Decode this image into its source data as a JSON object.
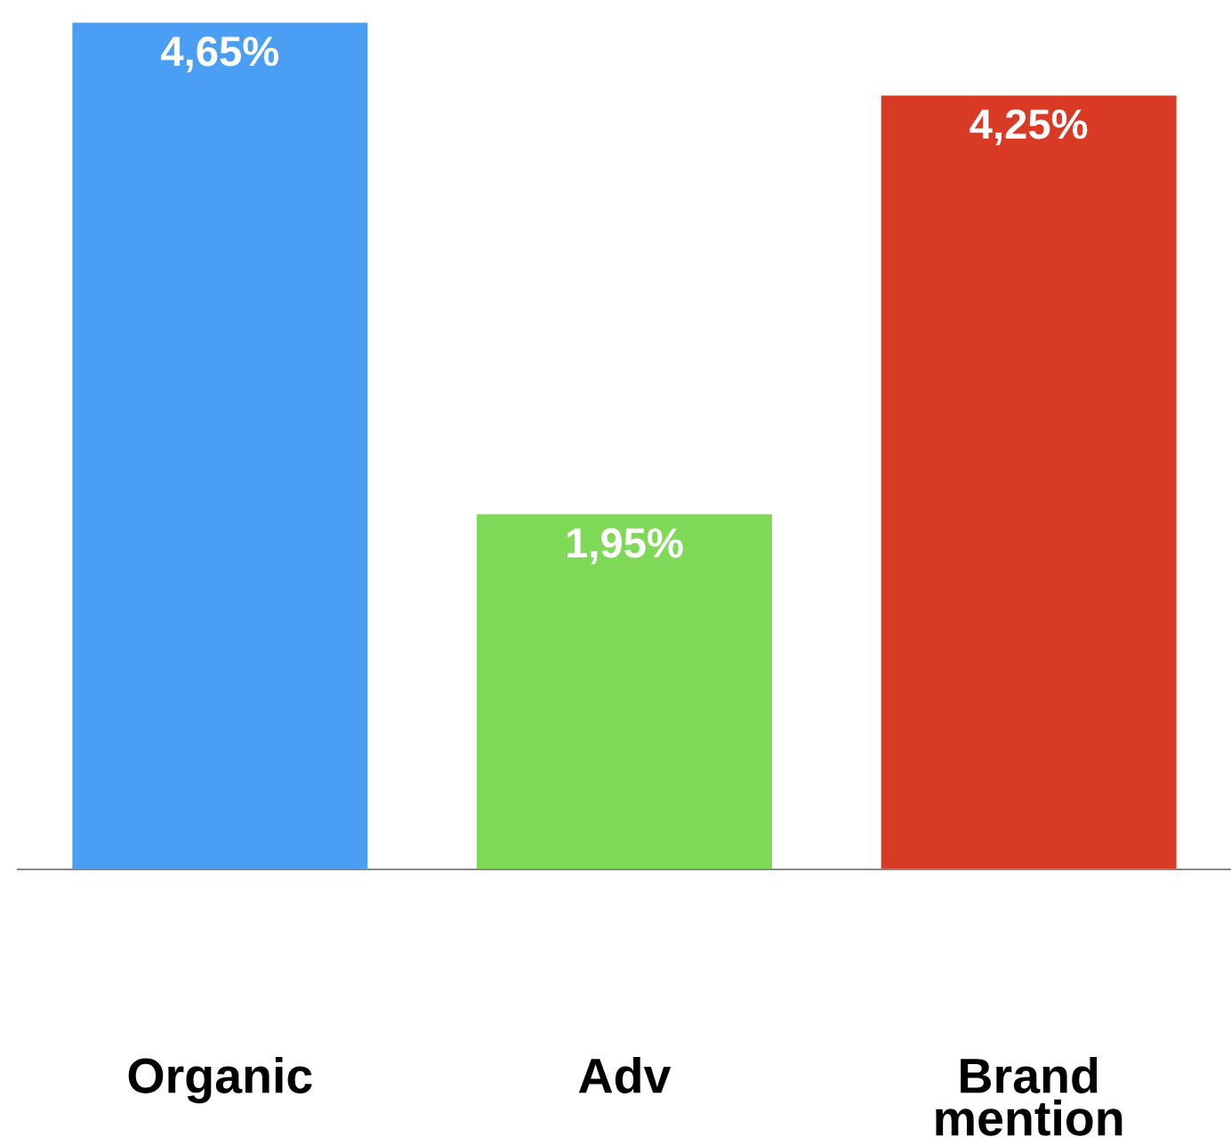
{
  "chart_data": {
    "type": "bar",
    "categories": [
      "Organic",
      "Adv",
      "Brand\nmention"
    ],
    "values": [
      4.65,
      1.95,
      4.25
    ],
    "colors": [
      "#4a9ff5",
      "#7ed957",
      "#d93a25"
    ],
    "value_labels": [
      "4,65%",
      "1,95%",
      "4,25%"
    ],
    "grid": false,
    "legend": false,
    "tick_labels": "x"
  }
}
